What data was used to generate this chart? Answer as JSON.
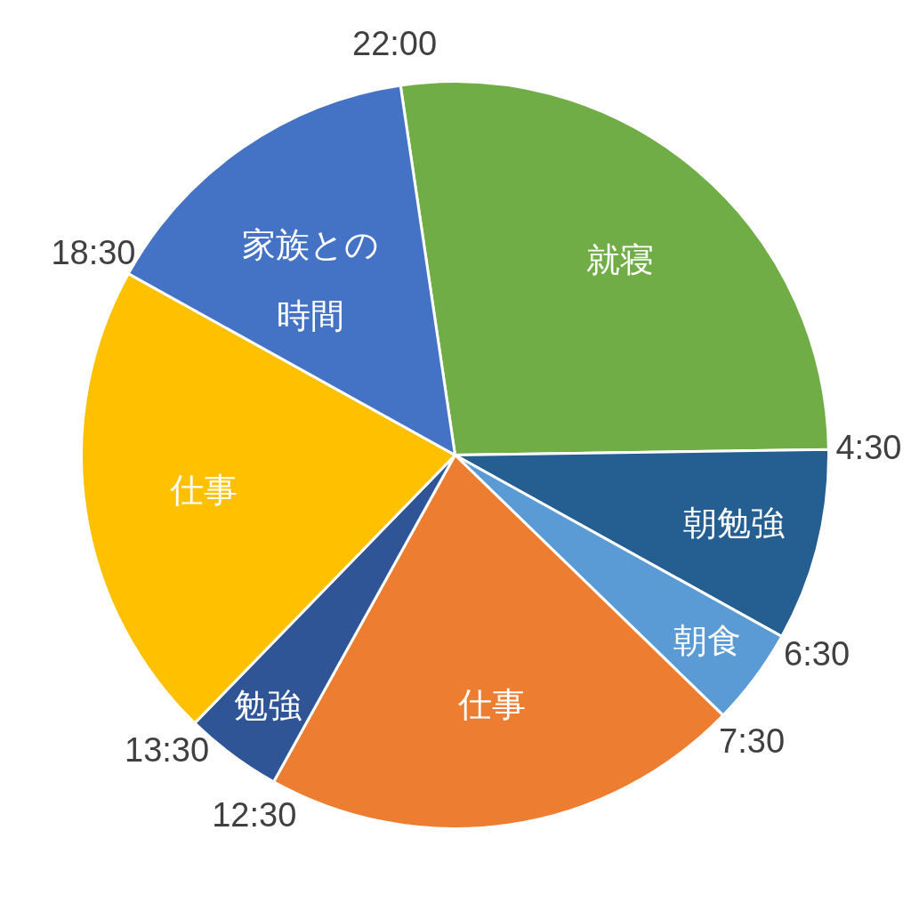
{
  "chart_data": {
    "type": "pie",
    "categories": [
      "就寝",
      "朝勉強",
      "朝食",
      "仕事",
      "勉強",
      "仕事",
      "家族との時間"
    ],
    "values": [
      27.1,
      8.3,
      4.2,
      20.8,
      4.2,
      20.8,
      14.6
    ],
    "colors": [
      "#70ad47",
      "#255e91",
      "#5b9bd5",
      "#ed7d31",
      "#2f5597",
      "#ffc000",
      "#4472c4"
    ],
    "annotations": [
      "22:00",
      "4:30",
      "6:30",
      "7:30",
      "12:30",
      "13:30",
      "18:30"
    ]
  }
}
